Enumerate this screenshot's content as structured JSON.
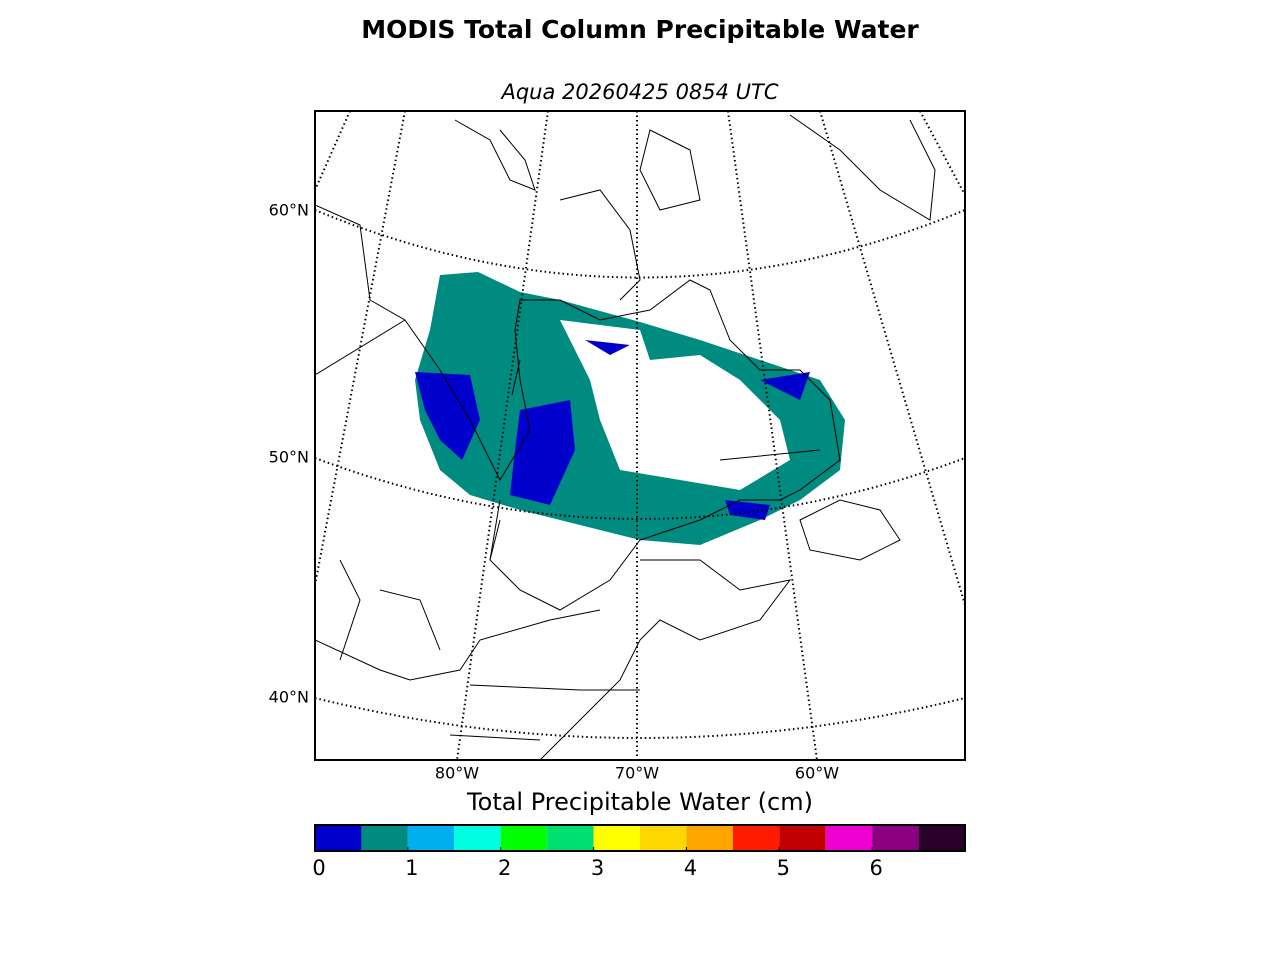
{
  "title": "MODIS Total Column Precipitable Water",
  "subtitle": "Aqua 20260425 0854 UTC",
  "map": {
    "lat_labels": [
      "60°N",
      "50°N",
      "40°N"
    ],
    "lon_labels": [
      "80°W",
      "70°W",
      "60°W"
    ]
  },
  "colorbar": {
    "label": "Total Precipitable Water (cm)",
    "lim": [
      0,
      7
    ],
    "ticks": [
      0,
      1,
      2,
      3,
      4,
      5,
      6
    ],
    "colors": [
      "#0000cd",
      "#008b80",
      "#00b0ee",
      "#00ffe0",
      "#00ff00",
      "#00e070",
      "#ffff00",
      "#ffd700",
      "#ffa500",
      "#ff1a00",
      "#c00000",
      "#ee00d0",
      "#8b0080",
      "#28002a"
    ]
  }
}
